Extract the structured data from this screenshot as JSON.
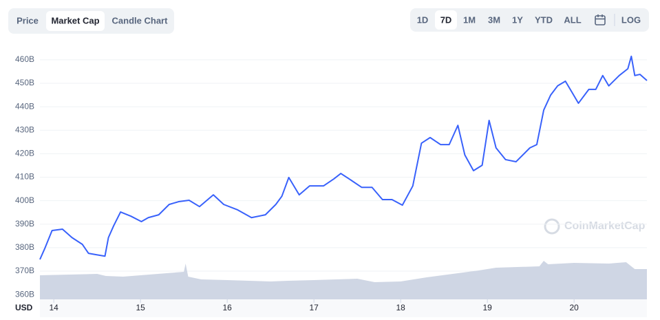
{
  "ui": {
    "tabs": [
      "Price",
      "Market Cap",
      "Candle Chart"
    ],
    "selected_tab": 1,
    "ranges": [
      "1D",
      "7D",
      "1M",
      "3M",
      "1Y",
      "YTD",
      "ALL"
    ],
    "selected_range": 1,
    "scale_toggle": "LOG",
    "watermark": "CoinMarketCap"
  },
  "chart_data": {
    "type": "line",
    "x_label": "USD",
    "x": [
      13.84,
      13.9,
      13.98,
      14.1,
      14.21,
      14.33,
      14.4,
      14.49,
      14.59,
      14.63,
      14.69,
      14.77,
      14.89,
      15.01,
      15.09,
      15.21,
      15.33,
      15.44,
      15.56,
      15.68,
      15.84,
      15.96,
      16.12,
      16.28,
      16.44,
      16.56,
      16.63,
      16.71,
      16.83,
      16.95,
      17.11,
      17.23,
      17.31,
      17.43,
      17.55,
      17.67,
      17.79,
      17.9,
      18.02,
      18.14,
      18.24,
      18.34,
      18.46,
      18.56,
      18.66,
      18.74,
      18.84,
      18.94,
      19.02,
      19.1,
      19.21,
      19.33,
      19.49,
      19.57,
      19.65,
      19.73,
      19.81,
      19.9,
      19.98,
      20.05,
      20.17,
      20.25,
      20.33,
      20.4,
      20.52,
      20.62,
      20.66,
      20.7,
      20.76,
      20.84
    ],
    "series": [
      {
        "color": "#3861fb",
        "values": [
          375,
          380,
          387.3,
          387.9,
          384.3,
          381.4,
          377.6,
          377,
          376.4,
          384.3,
          389.3,
          395.2,
          393.4,
          391.1,
          392.8,
          394,
          398.4,
          399.6,
          400.2,
          397.5,
          402.5,
          398.4,
          396.1,
          392.8,
          394,
          398.4,
          401.9,
          409.9,
          402.5,
          406.3,
          406.3,
          409.3,
          411.6,
          408.7,
          405.7,
          405.7,
          400.5,
          400.5,
          398.1,
          406.3,
          424.5,
          426.9,
          423.9,
          423.9,
          432.1,
          419.5,
          412.8,
          415.1,
          434.2,
          422.5,
          417.5,
          416.6,
          422.5,
          423.9,
          438.6,
          445,
          448.9,
          450.9,
          445.9,
          441.5,
          447.4,
          447.4,
          453.3,
          448.9,
          453.3,
          456.2,
          461.5,
          453.3,
          453.8,
          451.2
        ]
      }
    ],
    "volume": {
      "color": "#cfd6e4",
      "y2lim": [
        0,
        60
      ],
      "x": [
        13.84,
        14.5,
        14.6,
        14.8,
        15.0,
        15.3,
        15.5,
        15.52,
        15.55,
        15.7,
        16.0,
        16.5,
        16.7,
        17.0,
        17.5,
        17.7,
        18.0,
        18.3,
        18.6,
        18.9,
        19.1,
        19.6,
        19.65,
        19.7,
        20.0,
        20.4,
        20.6,
        20.7,
        20.84
      ],
      "values": [
        35,
        37,
        34,
        33,
        35,
        38,
        40,
        52,
        33,
        29,
        28,
        26,
        27,
        28,
        30,
        25,
        26,
        32,
        37,
        42,
        46,
        48,
        56,
        51,
        53,
        52,
        54,
        44,
        44
      ]
    },
    "xlim": [
      13.84,
      20.84
    ],
    "xticks": [
      14,
      15,
      16,
      17,
      18,
      19,
      20
    ],
    "ylim": [
      358,
      467.3
    ],
    "yticks": [
      {
        "value": 360,
        "label": "360B"
      },
      {
        "value": 370,
        "label": "370B"
      },
      {
        "value": 380,
        "label": "380B"
      },
      {
        "value": 390,
        "label": "390B"
      },
      {
        "value": 400,
        "label": "400B"
      },
      {
        "value": 410,
        "label": "410B"
      },
      {
        "value": 420,
        "label": "420B"
      },
      {
        "value": 430,
        "label": "430B"
      },
      {
        "value": 440,
        "label": "440B"
      },
      {
        "value": 450,
        "label": "450B"
      },
      {
        "value": 460,
        "label": "460B"
      }
    ],
    "grid": true
  }
}
